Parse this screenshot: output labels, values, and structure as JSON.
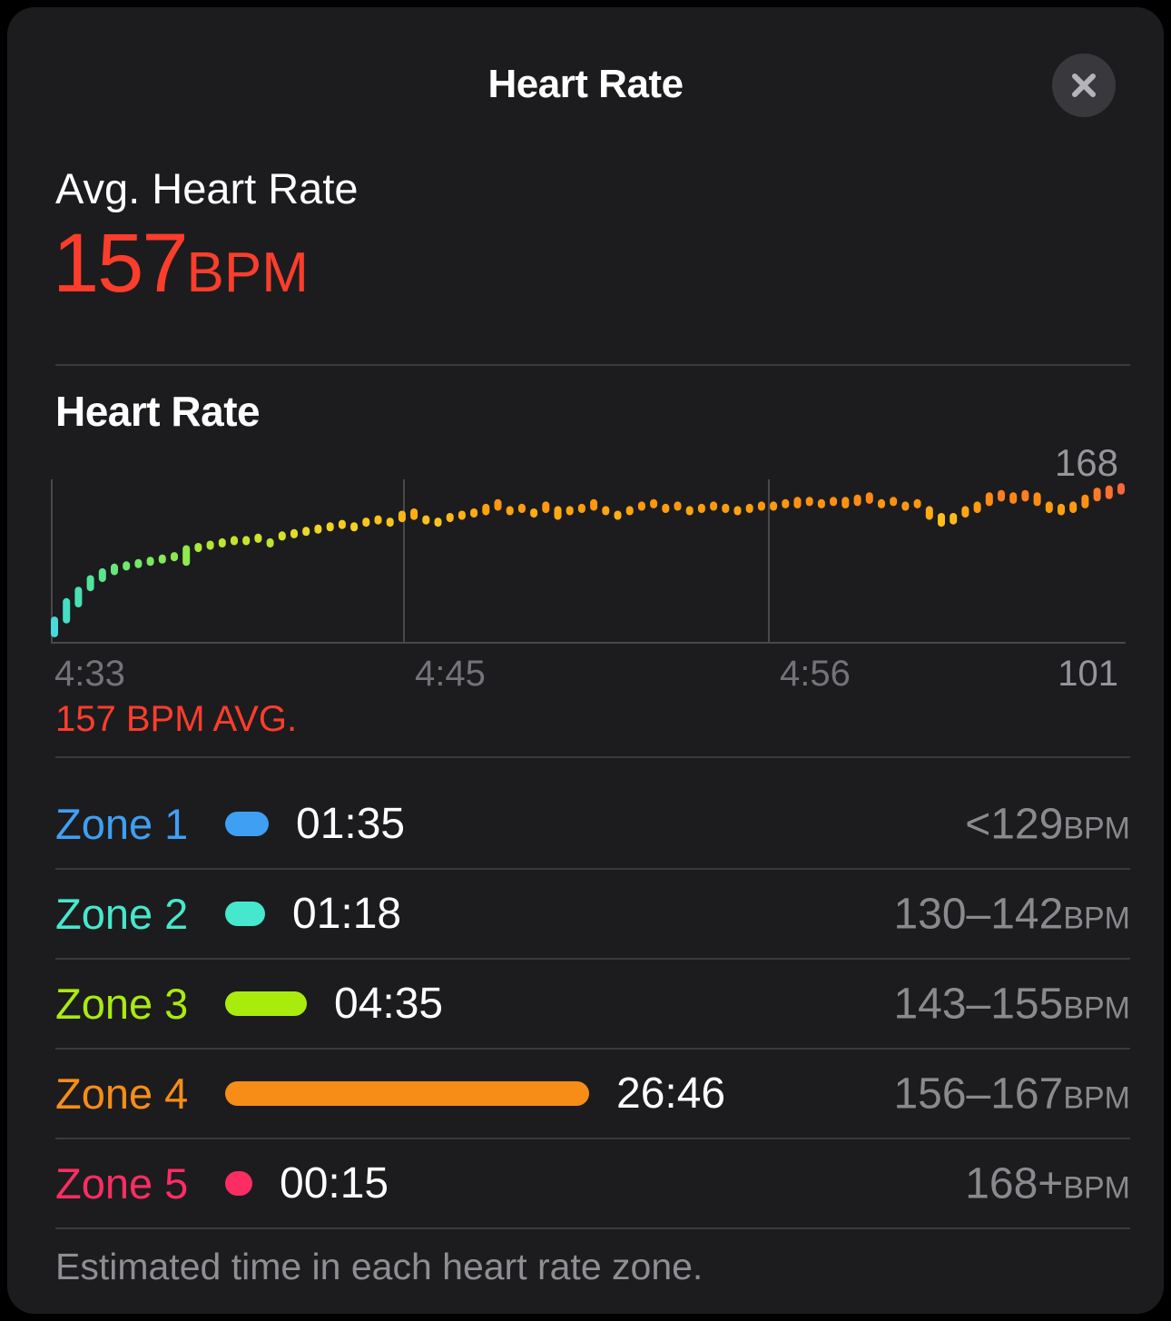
{
  "header": {
    "title": "Heart Rate"
  },
  "summary": {
    "label": "Avg. Heart Rate",
    "value": "157",
    "unit": "BPM"
  },
  "chart": {
    "heading": "Heart Rate",
    "max_label": "168",
    "x_ticks": [
      "4:33",
      "4:45",
      "4:56"
    ],
    "x_end_label": "101",
    "avg_caption": "157 BPM AVG."
  },
  "chart_data": {
    "type": "bar",
    "subtype": "range-bars-heart-rate",
    "title": "Heart Rate",
    "ylabel": "BPM",
    "ylim": [
      99,
      170
    ],
    "y_max_annotation": 168,
    "x_tick_labels": [
      "4:33",
      "4:45",
      "4:56",
      "101"
    ],
    "avg_bpm": 157,
    "legend": "color encodes heart-rate intensity from cyan (low) to red (high)",
    "points": [
      [
        101,
        110
      ],
      [
        107,
        118
      ],
      [
        114,
        123
      ],
      [
        121,
        128
      ],
      [
        125,
        131
      ],
      [
        128,
        133
      ],
      [
        130,
        134
      ],
      [
        131,
        135
      ],
      [
        132,
        136
      ],
      [
        133,
        137
      ],
      [
        134,
        138
      ],
      [
        132,
        141
      ],
      [
        138,
        142
      ],
      [
        139,
        143
      ],
      [
        140,
        144
      ],
      [
        141,
        145
      ],
      [
        141,
        145
      ],
      [
        142,
        146
      ],
      [
        140,
        144
      ],
      [
        143,
        147
      ],
      [
        144,
        148
      ],
      [
        145,
        149
      ],
      [
        146,
        150
      ],
      [
        147,
        151
      ],
      [
        148,
        152
      ],
      [
        147,
        151
      ],
      [
        149,
        153
      ],
      [
        150,
        154
      ],
      [
        149,
        153
      ],
      [
        151,
        156
      ],
      [
        152,
        157
      ],
      [
        150,
        154
      ],
      [
        149,
        153
      ],
      [
        151,
        155
      ],
      [
        152,
        156
      ],
      [
        153,
        157
      ],
      [
        154,
        159
      ],
      [
        156,
        161
      ],
      [
        154,
        158
      ],
      [
        155,
        159
      ],
      [
        153,
        157
      ],
      [
        155,
        160
      ],
      [
        152,
        158
      ],
      [
        154,
        158
      ],
      [
        155,
        159
      ],
      [
        156,
        161
      ],
      [
        154,
        158
      ],
      [
        152,
        156
      ],
      [
        154,
        158
      ],
      [
        156,
        160
      ],
      [
        157,
        161
      ],
      [
        155,
        159
      ],
      [
        156,
        160
      ],
      [
        154,
        158
      ],
      [
        155,
        159
      ],
      [
        156,
        160
      ],
      [
        155,
        159
      ],
      [
        154,
        158
      ],
      [
        155,
        159
      ],
      [
        156,
        160
      ],
      [
        156,
        160
      ],
      [
        157,
        161
      ],
      [
        157,
        162
      ],
      [
        158,
        162
      ],
      [
        157,
        161
      ],
      [
        158,
        162
      ],
      [
        157,
        162
      ],
      [
        158,
        163
      ],
      [
        159,
        164
      ],
      [
        157,
        161
      ],
      [
        158,
        162
      ],
      [
        156,
        160
      ],
      [
        157,
        161
      ],
      [
        152,
        158
      ],
      [
        149,
        155
      ],
      [
        150,
        155
      ],
      [
        153,
        158
      ],
      [
        155,
        160
      ],
      [
        158,
        164
      ],
      [
        160,
        165
      ],
      [
        159,
        164
      ],
      [
        160,
        165
      ],
      [
        158,
        164
      ],
      [
        155,
        160
      ],
      [
        154,
        159
      ],
      [
        155,
        160
      ],
      [
        157,
        163
      ],
      [
        160,
        166
      ],
      [
        161,
        167
      ],
      [
        163,
        168
      ]
    ],
    "color_stops": [
      {
        "v": 101,
        "c": "#4ed4e6"
      },
      {
        "v": 115,
        "c": "#43e0c0"
      },
      {
        "v": 127,
        "c": "#55e596"
      },
      {
        "v": 134,
        "c": "#7ae95e"
      },
      {
        "v": 140,
        "c": "#abe838"
      },
      {
        "v": 145,
        "c": "#d8e02b"
      },
      {
        "v": 149,
        "c": "#f4d224"
      },
      {
        "v": 153,
        "c": "#ffb81b"
      },
      {
        "v": 157,
        "c": "#ff9d10"
      },
      {
        "v": 161,
        "c": "#ff8c12"
      },
      {
        "v": 164,
        "c": "#ff7030"
      },
      {
        "v": 168,
        "c": "#f9544d"
      }
    ]
  },
  "zones": [
    {
      "label": "Zone 1",
      "time": "01:35",
      "range": "<129",
      "unit": "BPM",
      "color": "#3f9ff3"
    },
    {
      "label": "Zone 2",
      "time": "01:18",
      "range": "130–142",
      "unit": "BPM",
      "color": "#45e8cd"
    },
    {
      "label": "Zone 3",
      "time": "04:35",
      "range": "143–155",
      "unit": "BPM",
      "color": "#aaeb0e"
    },
    {
      "label": "Zone 4",
      "time": "26:46",
      "range": "156–167",
      "unit": "BPM",
      "color": "#f78d17"
    },
    {
      "label": "Zone 5",
      "time": "00:15",
      "range": "168+",
      "unit": "BPM",
      "color": "#fb2d63"
    }
  ],
  "footer": {
    "note": "Estimated time in each heart rate zone."
  }
}
